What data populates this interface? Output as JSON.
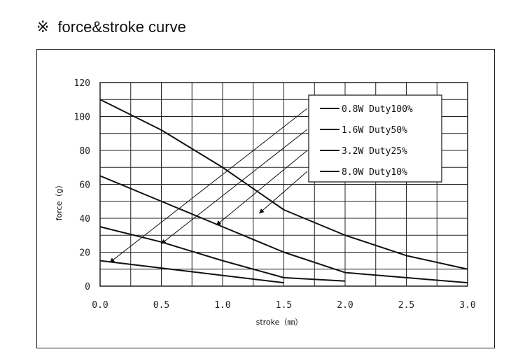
{
  "header": {
    "mark": "※",
    "title": "force&stroke curve"
  },
  "chart_data": {
    "type": "line",
    "xlabel": "stroke（㎜）",
    "ylabel": "force（g）",
    "xlim": [
      0,
      3.0
    ],
    "ylim": [
      0,
      120
    ],
    "x_ticks": [
      "0.0",
      "0.5",
      "1.0",
      "1.5",
      "2.0",
      "2.5",
      "3.0"
    ],
    "y_ticks": [
      "0",
      "20",
      "40",
      "60",
      "80",
      "100",
      "120"
    ],
    "x_grid_step": 0.25,
    "y_grid_step": 10,
    "grid": true,
    "legend_position": "top-right",
    "series": [
      {
        "name": "0.8W Duty100%",
        "x": [
          0,
          1.5
        ],
        "y": [
          15,
          2
        ]
      },
      {
        "name": "1.6W Duty50%",
        "x": [
          0,
          0.5,
          1.0,
          1.5,
          2.0
        ],
        "y": [
          35,
          26,
          15,
          5,
          3
        ]
      },
      {
        "name": "3.2W Duty25%",
        "x": [
          0,
          0.5,
          1.0,
          1.5,
          2.0,
          2.5,
          3.0
        ],
        "y": [
          65,
          50,
          35,
          20,
          8,
          5,
          2
        ]
      },
      {
        "name": "8.0W Duty10%",
        "x": [
          0,
          0.5,
          1.0,
          1.5,
          2.0,
          2.5,
          3.0
        ],
        "y": [
          110,
          92,
          70,
          45,
          30,
          18,
          10
        ]
      }
    ],
    "pointers": [
      {
        "series": "0.8W Duty100%",
        "at": [
          0.08,
          14
        ]
      },
      {
        "series": "1.6W Duty50%",
        "at": [
          0.5,
          25
        ]
      },
      {
        "series": "3.2W Duty25%",
        "at": [
          0.95,
          36
        ]
      },
      {
        "series": "8.0W Duty10%",
        "at": [
          1.3,
          43
        ]
      }
    ]
  }
}
